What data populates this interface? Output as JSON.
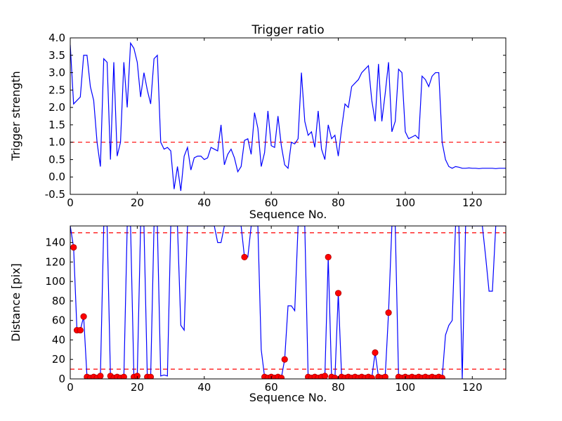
{
  "figure": {
    "background": "#ffffff",
    "frame_color": "#000000"
  },
  "chart_data": [
    {
      "type": "line",
      "title": "Trigger ratio",
      "xlabel": "Sequence No.",
      "ylabel": "Trigger strength",
      "xlim": [
        0,
        130
      ],
      "ylim": [
        -0.5,
        4.0
      ],
      "xticks": [
        0,
        20,
        40,
        60,
        80,
        100,
        120
      ],
      "xticklabels": [
        "0",
        "20",
        "40",
        "60",
        "80",
        "100",
        "120"
      ],
      "yticks": [
        -0.5,
        0.0,
        0.5,
        1.0,
        1.5,
        2.0,
        2.5,
        3.0,
        3.5,
        4.0
      ],
      "yticklabels": [
        "-0.5",
        "0.0",
        "0.5",
        "1.0",
        "1.5",
        "2.0",
        "2.5",
        "3.0",
        "3.5",
        "4.0"
      ],
      "line_color": "#0000ff",
      "threshold_color": "#ff0000",
      "thresholds": [
        1.0
      ],
      "grid": false,
      "y": [
        3.8,
        2.1,
        2.2,
        2.3,
        3.5,
        3.5,
        2.6,
        2.2,
        1.0,
        0.3,
        3.4,
        3.3,
        0.5,
        3.3,
        0.6,
        1.0,
        3.3,
        2.0,
        3.85,
        3.7,
        3.3,
        2.3,
        3.0,
        2.5,
        2.1,
        3.4,
        3.5,
        1.0,
        0.8,
        0.85,
        0.75,
        -0.35,
        0.3,
        -0.4,
        0.6,
        0.85,
        0.2,
        0.55,
        0.6,
        0.6,
        0.5,
        0.55,
        0.85,
        0.8,
        0.75,
        1.5,
        0.35,
        0.65,
        0.8,
        0.55,
        0.15,
        0.3,
        1.05,
        1.1,
        0.65,
        1.85,
        1.4,
        0.3,
        0.7,
        1.9,
        0.9,
        0.85,
        1.75,
        0.9,
        0.35,
        0.25,
        1.0,
        0.95,
        1.1,
        3.0,
        1.6,
        1.2,
        1.3,
        0.85,
        1.9,
        0.8,
        0.5,
        1.5,
        1.1,
        1.2,
        0.6,
        1.4,
        2.1,
        2.0,
        2.6,
        2.7,
        2.8,
        3.0,
        3.1,
        3.2,
        2.2,
        1.6,
        3.25,
        1.6,
        2.4,
        3.3,
        1.3,
        1.6,
        3.1,
        3.0,
        1.3,
        1.1,
        1.15,
        1.2,
        1.1,
        2.9,
        2.8,
        2.6,
        2.9,
        3.0,
        3.0,
        1.0,
        0.5,
        0.3,
        0.25,
        0.3,
        0.28,
        0.25,
        0.25,
        0.26,
        0.25,
        0.25,
        0.24,
        0.25,
        0.25,
        0.25,
        0.25,
        0.24,
        0.25,
        0.25,
        0.25
      ]
    },
    {
      "type": "line",
      "title": "",
      "xlabel": "Sequence No.",
      "ylabel": "Distance [pix]",
      "xlim": [
        0,
        130
      ],
      "ylim": [
        0,
        157
      ],
      "xticks": [
        0,
        20,
        40,
        60,
        80,
        100,
        120
      ],
      "xticklabels": [
        "0",
        "20",
        "40",
        "60",
        "80",
        "100",
        "120"
      ],
      "yticks": [
        0,
        20,
        40,
        60,
        80,
        100,
        120,
        140
      ],
      "yticklabels": [
        "0",
        "20",
        "40",
        "60",
        "80",
        "100",
        "120",
        "140"
      ],
      "line_color": "#0000ff",
      "threshold_color": "#ff0000",
      "marker_color": "#ff0000",
      "thresholds": [
        150,
        10
      ],
      "grid": false,
      "y": [
        157,
        135,
        50,
        50,
        64,
        2,
        1,
        2,
        1,
        3,
        157,
        157,
        3,
        1,
        2,
        1,
        2,
        157,
        157,
        2,
        3,
        157,
        157,
        2,
        2,
        157,
        157,
        3,
        4,
        3,
        157,
        157,
        157,
        55,
        50,
        157,
        157,
        157,
        157,
        157,
        157,
        157,
        157,
        157,
        140,
        140,
        157,
        157,
        157,
        157,
        157,
        157,
        125,
        125,
        157,
        157,
        157,
        30,
        2,
        1,
        2,
        1,
        2,
        1,
        20,
        75,
        75,
        70,
        157,
        157,
        157,
        2,
        1,
        2,
        1,
        2,
        3,
        125,
        2,
        1,
        88,
        2,
        1,
        2,
        1,
        2,
        1,
        2,
        1,
        2,
        1,
        27,
        2,
        1,
        2,
        68,
        157,
        157,
        2,
        1,
        2,
        1,
        2,
        1,
        2,
        1,
        2,
        1,
        2,
        1,
        2,
        1,
        45,
        55,
        60,
        157,
        157,
        0,
        157,
        157,
        157,
        157,
        157,
        157,
        125,
        90,
        90,
        157,
        157,
        157,
        157
      ],
      "markers": [
        [
          1,
          135
        ],
        [
          2,
          50
        ],
        [
          3,
          50
        ],
        [
          4,
          64
        ],
        [
          5,
          2
        ],
        [
          6,
          1
        ],
        [
          7,
          2
        ],
        [
          8,
          1
        ],
        [
          9,
          3
        ],
        [
          12,
          3
        ],
        [
          13,
          1
        ],
        [
          14,
          2
        ],
        [
          15,
          1
        ],
        [
          16,
          2
        ],
        [
          19,
          2
        ],
        [
          20,
          3
        ],
        [
          23,
          2
        ],
        [
          24,
          2
        ],
        [
          52,
          125
        ],
        [
          58,
          2
        ],
        [
          59,
          1
        ],
        [
          60,
          2
        ],
        [
          61,
          1
        ],
        [
          62,
          2
        ],
        [
          63,
          1
        ],
        [
          64,
          20
        ],
        [
          71,
          2
        ],
        [
          72,
          1
        ],
        [
          73,
          2
        ],
        [
          74,
          1
        ],
        [
          75,
          2
        ],
        [
          76,
          3
        ],
        [
          77,
          125
        ],
        [
          78,
          2
        ],
        [
          79,
          1
        ],
        [
          80,
          88
        ],
        [
          81,
          2
        ],
        [
          82,
          1
        ],
        [
          83,
          2
        ],
        [
          84,
          1
        ],
        [
          85,
          2
        ],
        [
          86,
          1
        ],
        [
          87,
          2
        ],
        [
          88,
          1
        ],
        [
          89,
          2
        ],
        [
          90,
          1
        ],
        [
          91,
          27
        ],
        [
          92,
          2
        ],
        [
          93,
          1
        ],
        [
          94,
          2
        ],
        [
          95,
          68
        ],
        [
          98,
          2
        ],
        [
          99,
          1
        ],
        [
          100,
          2
        ],
        [
          101,
          1
        ],
        [
          102,
          2
        ],
        [
          103,
          1
        ],
        [
          104,
          2
        ],
        [
          105,
          1
        ],
        [
          106,
          2
        ],
        [
          107,
          1
        ],
        [
          108,
          2
        ],
        [
          109,
          1
        ],
        [
          110,
          2
        ],
        [
          111,
          1
        ]
      ]
    }
  ]
}
